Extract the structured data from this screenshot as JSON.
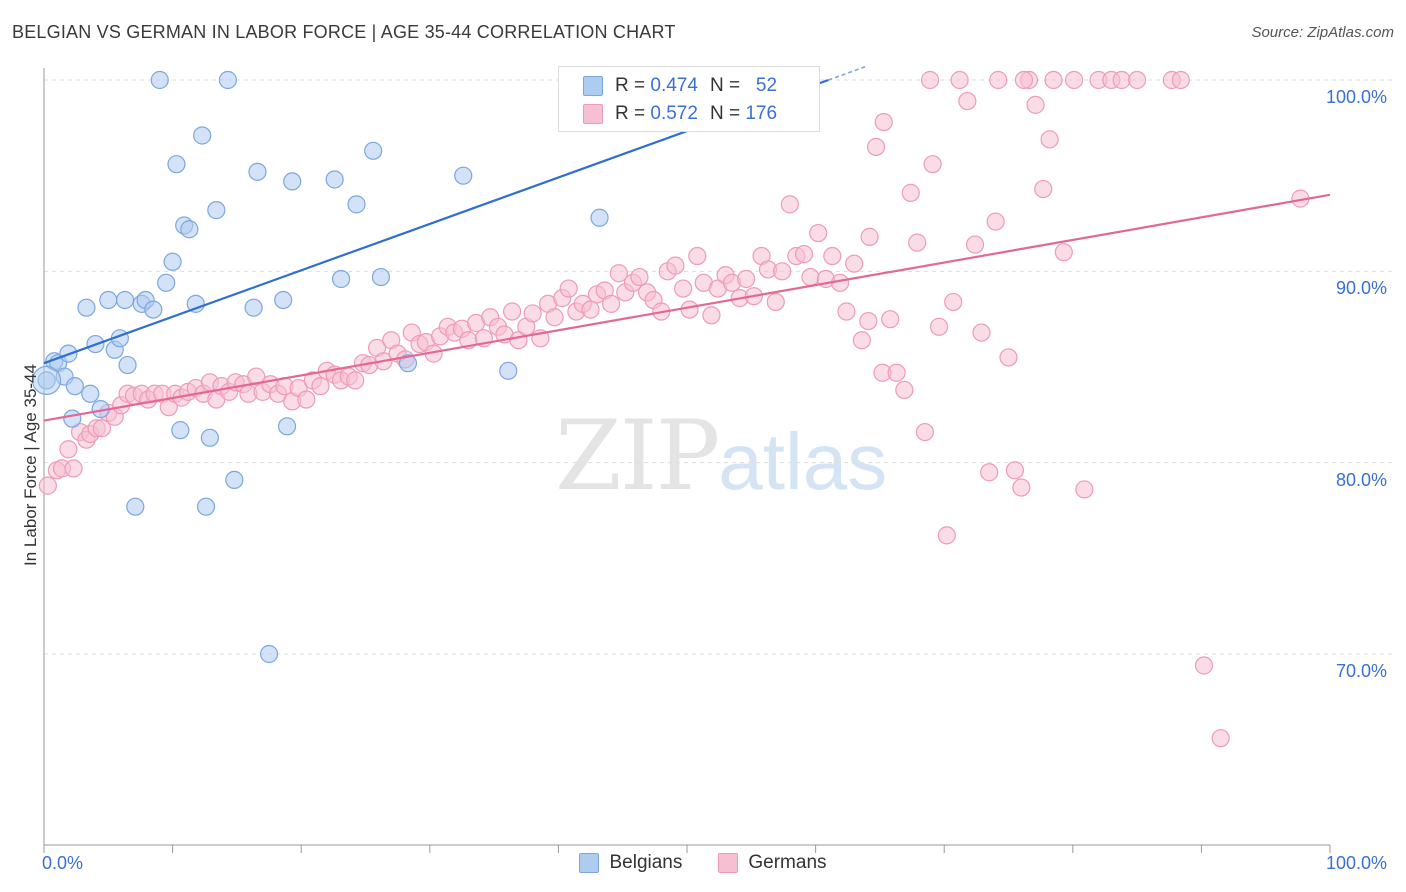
{
  "title": "BELGIAN VS GERMAN IN LABOR FORCE | AGE 35-44 CORRELATION CHART",
  "source": "Source: ZipAtlas.com",
  "watermark": {
    "zip": "ZIP",
    "atlas": "atlas"
  },
  "legend": {
    "belgians": {
      "r_label": "R =",
      "r_value": "0.474",
      "n_label": "N =",
      "n_value": "52"
    },
    "germans": {
      "r_label": "R =",
      "r_value": "0.572",
      "n_label": "N =",
      "n_value": "176"
    }
  },
  "colors": {
    "belgians_fill": "#aecbf0",
    "belgians_stroke": "#7ba7e0",
    "belgians_line": "#2f6fcf",
    "germans_fill": "#f6bfd2",
    "germans_stroke": "#ef9ab8",
    "germans_line": "#e26896",
    "grid": "#dddddd",
    "axis_label": "#3a6fd8"
  },
  "chart_data": {
    "type": "scatter",
    "title": "BELGIAN VS GERMAN IN LABOR FORCE | AGE 35-44 CORRELATION CHART",
    "xlabel": "",
    "ylabel": "In Labor Force | Age 35-44",
    "xlim": [
      0,
      100
    ],
    "ylim": [
      60.5,
      101.5
    ],
    "x_tick_labels": [
      "0.0%",
      "100.0%"
    ],
    "y_ticks": [
      70,
      80,
      90,
      100
    ],
    "y_tick_labels": [
      "70.0%",
      "80.0%",
      "90.0%",
      "100.0%"
    ],
    "grid": true,
    "legend_position": "bottom-center",
    "series": [
      {
        "name": "Belgians",
        "r": 0.474,
        "n": 52,
        "trend": {
          "x": [
            0,
            61
          ],
          "y": [
            85.2,
            100
          ]
        },
        "points": [
          [
            0.2,
            84.3
          ],
          [
            0.8,
            85.3
          ],
          [
            1.1,
            85.2
          ],
          [
            1.6,
            84.5
          ],
          [
            1.9,
            85.7
          ],
          [
            2.2,
            82.3
          ],
          [
            2.4,
            84.0
          ],
          [
            3.3,
            88.1
          ],
          [
            3.6,
            83.6
          ],
          [
            4.0,
            86.2
          ],
          [
            4.4,
            82.8
          ],
          [
            5.0,
            88.5
          ],
          [
            5.5,
            85.9
          ],
          [
            5.9,
            86.5
          ],
          [
            6.3,
            88.5
          ],
          [
            6.5,
            85.1
          ],
          [
            7.1,
            77.7
          ],
          [
            7.6,
            88.3
          ],
          [
            7.9,
            88.5
          ],
          [
            8.5,
            88.0
          ],
          [
            9.0,
            100.0
          ],
          [
            9.5,
            89.4
          ],
          [
            10.0,
            90.5
          ],
          [
            10.3,
            95.6
          ],
          [
            10.6,
            81.7
          ],
          [
            10.9,
            92.4
          ],
          [
            11.3,
            92.2
          ],
          [
            11.8,
            88.3
          ],
          [
            12.3,
            97.1
          ],
          [
            12.6,
            77.7
          ],
          [
            12.9,
            81.3
          ],
          [
            13.4,
            93.2
          ],
          [
            14.3,
            100.0
          ],
          [
            14.8,
            79.1
          ],
          [
            16.3,
            88.1
          ],
          [
            16.6,
            95.2
          ],
          [
            17.5,
            70.0
          ],
          [
            18.6,
            88.5
          ],
          [
            18.9,
            81.9
          ],
          [
            19.3,
            94.7
          ],
          [
            22.6,
            94.8
          ],
          [
            23.1,
            89.6
          ],
          [
            24.3,
            93.5
          ],
          [
            25.6,
            96.3
          ],
          [
            26.2,
            89.7
          ],
          [
            28.3,
            85.2
          ],
          [
            32.6,
            95.0
          ],
          [
            36.1,
            84.8
          ],
          [
            43.2,
            92.8
          ],
          [
            52.0,
            100.0
          ]
        ]
      },
      {
        "name": "Germans",
        "r": 0.572,
        "n": 176,
        "trend": {
          "x": [
            0,
            100
          ],
          "y": [
            82.2,
            94.0
          ]
        },
        "points": [
          [
            0.3,
            78.8
          ],
          [
            1.0,
            79.6
          ],
          [
            1.4,
            79.7
          ],
          [
            1.9,
            80.7
          ],
          [
            2.3,
            79.7
          ],
          [
            2.8,
            81.6
          ],
          [
            3.3,
            81.2
          ],
          [
            3.6,
            81.5
          ],
          [
            4.1,
            81.8
          ],
          [
            4.5,
            81.8
          ],
          [
            5.0,
            82.6
          ],
          [
            5.5,
            82.4
          ],
          [
            6.0,
            83.0
          ],
          [
            6.5,
            83.6
          ],
          [
            7.0,
            83.5
          ],
          [
            7.6,
            83.6
          ],
          [
            8.1,
            83.3
          ],
          [
            8.6,
            83.6
          ],
          [
            9.2,
            83.6
          ],
          [
            9.7,
            82.9
          ],
          [
            10.2,
            83.6
          ],
          [
            10.7,
            83.4
          ],
          [
            11.2,
            83.7
          ],
          [
            11.8,
            83.9
          ],
          [
            12.4,
            83.6
          ],
          [
            12.9,
            84.2
          ],
          [
            13.4,
            83.3
          ],
          [
            13.8,
            84.0
          ],
          [
            14.4,
            83.7
          ],
          [
            14.9,
            84.2
          ],
          [
            15.5,
            84.1
          ],
          [
            15.9,
            83.6
          ],
          [
            16.5,
            84.5
          ],
          [
            17.0,
            83.7
          ],
          [
            17.6,
            84.1
          ],
          [
            18.2,
            83.6
          ],
          [
            18.7,
            84.0
          ],
          [
            19.3,
            83.2
          ],
          [
            19.8,
            83.9
          ],
          [
            20.4,
            83.3
          ],
          [
            20.9,
            84.3
          ],
          [
            21.5,
            84.0
          ],
          [
            22.0,
            84.8
          ],
          [
            22.6,
            84.6
          ],
          [
            23.1,
            84.3
          ],
          [
            23.7,
            84.5
          ],
          [
            24.2,
            84.3
          ],
          [
            24.8,
            85.2
          ],
          [
            25.3,
            85.1
          ],
          [
            25.9,
            86.0
          ],
          [
            26.4,
            85.3
          ],
          [
            27.0,
            86.4
          ],
          [
            27.5,
            85.7
          ],
          [
            28.1,
            85.4
          ],
          [
            28.6,
            86.8
          ],
          [
            29.2,
            86.2
          ],
          [
            29.7,
            86.3
          ],
          [
            30.3,
            85.7
          ],
          [
            30.8,
            86.6
          ],
          [
            31.4,
            87.1
          ],
          [
            31.9,
            86.8
          ],
          [
            32.5,
            87.0
          ],
          [
            33.0,
            86.4
          ],
          [
            33.6,
            87.3
          ],
          [
            34.2,
            86.5
          ],
          [
            34.7,
            87.6
          ],
          [
            35.3,
            87.1
          ],
          [
            35.8,
            86.7
          ],
          [
            36.4,
            87.9
          ],
          [
            36.9,
            86.4
          ],
          [
            37.5,
            87.1
          ],
          [
            38.0,
            87.8
          ],
          [
            38.6,
            86.5
          ],
          [
            39.2,
            88.3
          ],
          [
            39.7,
            87.6
          ],
          [
            40.3,
            88.6
          ],
          [
            40.8,
            89.1
          ],
          [
            41.4,
            87.9
          ],
          [
            41.9,
            88.3
          ],
          [
            42.5,
            88.0
          ],
          [
            43.0,
            88.8
          ],
          [
            43.6,
            89.0
          ],
          [
            44.1,
            88.3
          ],
          [
            44.7,
            89.9
          ],
          [
            45.2,
            88.9
          ],
          [
            45.8,
            89.4
          ],
          [
            46.3,
            89.7
          ],
          [
            46.9,
            88.9
          ],
          [
            47.4,
            88.5
          ],
          [
            48.0,
            87.9
          ],
          [
            48.5,
            90.0
          ],
          [
            49.1,
            90.3
          ],
          [
            49.7,
            89.1
          ],
          [
            50.2,
            88.0
          ],
          [
            50.8,
            90.8
          ],
          [
            51.3,
            89.4
          ],
          [
            51.9,
            87.7
          ],
          [
            52.4,
            89.1
          ],
          [
            53.0,
            89.8
          ],
          [
            53.5,
            89.4
          ],
          [
            54.1,
            88.6
          ],
          [
            54.6,
            89.6
          ],
          [
            55.2,
            88.7
          ],
          [
            55.8,
            90.8
          ],
          [
            56.3,
            90.1
          ],
          [
            56.9,
            88.4
          ],
          [
            57.4,
            90.0
          ],
          [
            58.0,
            93.5
          ],
          [
            58.5,
            90.8
          ],
          [
            59.1,
            90.9
          ],
          [
            59.6,
            89.7
          ],
          [
            60.2,
            92.0
          ],
          [
            60.8,
            89.6
          ],
          [
            61.3,
            90.8
          ],
          [
            61.9,
            89.4
          ],
          [
            62.4,
            87.9
          ],
          [
            63.0,
            90.4
          ],
          [
            63.6,
            86.4
          ],
          [
            64.1,
            87.4
          ],
          [
            64.7,
            96.5
          ],
          [
            65.2,
            84.7
          ],
          [
            65.8,
            87.5
          ],
          [
            66.3,
            84.7
          ],
          [
            66.9,
            83.8
          ],
          [
            67.4,
            94.1
          ],
          [
            67.9,
            91.5
          ],
          [
            68.5,
            81.6
          ],
          [
            69.1,
            95.6
          ],
          [
            69.6,
            87.1
          ],
          [
            70.2,
            76.2
          ],
          [
            70.7,
            88.4
          ],
          [
            71.2,
            100.0
          ],
          [
            71.8,
            98.9
          ],
          [
            72.4,
            91.4
          ],
          [
            72.9,
            86.8
          ],
          [
            73.5,
            79.5
          ],
          [
            74.0,
            92.6
          ],
          [
            75.0,
            85.5
          ],
          [
            75.5,
            79.6
          ],
          [
            76.0,
            78.7
          ],
          [
            76.6,
            100.0
          ],
          [
            77.1,
            98.7
          ],
          [
            77.7,
            94.3
          ],
          [
            78.2,
            96.9
          ],
          [
            79.3,
            91.0
          ],
          [
            80.1,
            100.0
          ],
          [
            80.9,
            78.6
          ],
          [
            82.0,
            100.0
          ],
          [
            83.0,
            100.0
          ],
          [
            83.8,
            100.0
          ],
          [
            85.0,
            100.0
          ],
          [
            87.7,
            100.0
          ],
          [
            88.4,
            100.0
          ],
          [
            90.2,
            69.4
          ],
          [
            91.5,
            65.6
          ],
          [
            97.7,
            93.8
          ],
          [
            68.9,
            100.0
          ],
          [
            74.2,
            100.0
          ],
          [
            76.2,
            100.0
          ],
          [
            78.5,
            100.0
          ],
          [
            64.2,
            91.8
          ],
          [
            65.3,
            97.8
          ]
        ]
      }
    ]
  }
}
